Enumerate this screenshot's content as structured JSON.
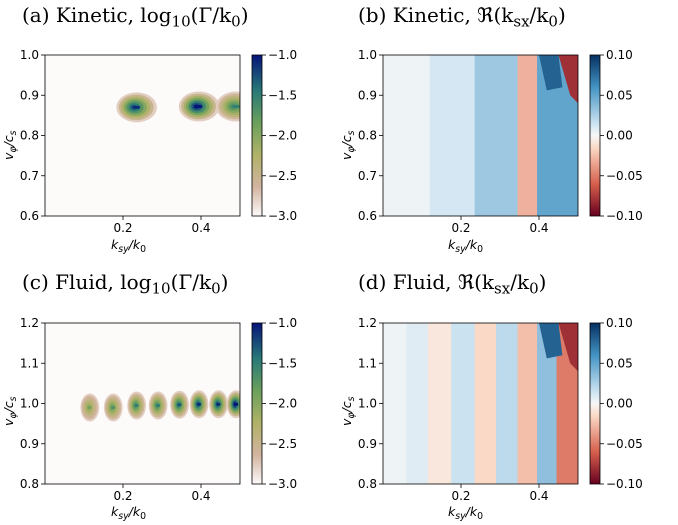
{
  "labels": {
    "xlabel_main": "k",
    "xlabel_sub": "sy",
    "xlabel_div": "/k",
    "xlabel_sub2": "0",
    "ylabel_main": "v",
    "ylabel_sub": "φ",
    "ylabel_div": "/c",
    "ylabel_sub2": "s"
  },
  "titles": {
    "a_prefix": "(a) Kinetic, log",
    "a_base": "10",
    "a_arg": "(Γ/k",
    "a_argsub": "0",
    "a_close": ")",
    "b_prefix": "(b) Kinetic, ℜ(k",
    "b_sub": "sx",
    "b_div": "/k",
    "b_sub2": "0",
    "b_close": ")",
    "c_prefix": "(c) Fluid, log",
    "c_base": "10",
    "c_arg": "(Γ/k",
    "c_argsub": "0",
    "c_close": ")",
    "d_prefix": "(d) Fluid, ℜ(k",
    "d_sub": "sx",
    "d_div": "/k",
    "d_sub2": "0",
    "d_close": ")"
  },
  "chart_data": [
    {
      "type": "heatmap",
      "panel": "a",
      "xlim": [
        0,
        0.5
      ],
      "ylim": [
        0.6,
        1.0
      ],
      "xticks": [
        "0.2",
        "0.4"
      ],
      "xtick_values": [
        0.2,
        0.4
      ],
      "yticks": [
        "0.6",
        "0.7",
        "0.8",
        "0.9",
        "1.0"
      ],
      "ytick_values": [
        0.6,
        0.7,
        0.8,
        0.9,
        1.0
      ],
      "colorbar": {
        "range": [
          -3.0,
          -1.0
        ],
        "ticks": [
          "−3.0",
          "−2.5",
          "−2.0",
          "−1.5",
          "−1.0"
        ],
        "tick_values": [
          -3.0,
          -2.5,
          -2.0,
          -1.5,
          -1.0
        ],
        "cmap": "gist_earth_r"
      },
      "features": [
        {
          "x": 0.235,
          "y": 0.87,
          "peak": -1.2
        },
        {
          "x": 0.395,
          "y": 0.872,
          "peak": -1.0
        },
        {
          "x": 0.49,
          "y": 0.872,
          "peak": -1.6
        }
      ]
    },
    {
      "type": "heatmap",
      "panel": "b",
      "xlim": [
        0,
        0.5
      ],
      "ylim": [
        0.6,
        1.0
      ],
      "xticks": [
        "0.2",
        "0.4"
      ],
      "xtick_values": [
        0.2,
        0.4
      ],
      "yticks": [
        "0.6",
        "0.7",
        "0.8",
        "0.9",
        "1.0"
      ],
      "ytick_values": [
        0.6,
        0.7,
        0.8,
        0.9,
        1.0
      ],
      "colorbar": {
        "range": [
          -0.1,
          0.1
        ],
        "ticks": [
          "−0.10",
          "−0.05",
          "0.00",
          "0.05",
          "0.10"
        ],
        "tick_values": [
          -0.1,
          -0.05,
          0.0,
          0.05,
          0.1
        ],
        "cmap": "RdBu"
      },
      "bands": [
        {
          "x_from": 0.0,
          "x_to": 0.12,
          "value": 0.003
        },
        {
          "x_from": 0.12,
          "x_to": 0.235,
          "value": 0.012
        },
        {
          "x_from": 0.235,
          "x_to": 0.345,
          "value": 0.03
        },
        {
          "x_from": 0.345,
          "x_to": 0.395,
          "value": -0.03
        },
        {
          "x_from": 0.395,
          "x_to": 0.5,
          "value": 0.05
        }
      ]
    },
    {
      "type": "heatmap",
      "panel": "c",
      "xlim": [
        0,
        0.5
      ],
      "ylim": [
        0.8,
        1.2
      ],
      "xticks": [
        "0.2",
        "0.4"
      ],
      "xtick_values": [
        0.2,
        0.4
      ],
      "yticks": [
        "0.8",
        "0.9",
        "1.0",
        "1.1",
        "1.2"
      ],
      "ytick_values": [
        0.8,
        0.9,
        1.0,
        1.1,
        1.2
      ],
      "colorbar": {
        "range": [
          -3.0,
          -1.0
        ],
        "ticks": [
          "−3.0",
          "−2.5",
          "−2.0",
          "−1.5",
          "−1.0"
        ],
        "tick_values": [
          -3.0,
          -2.5,
          -2.0,
          -1.5,
          -1.0
        ],
        "cmap": "gist_earth_r"
      },
      "features": [
        {
          "x": 0.115,
          "y": 0.99,
          "peak": -2.0
        },
        {
          "x": 0.175,
          "y": 0.99,
          "peak": -1.8
        },
        {
          "x": 0.235,
          "y": 0.995,
          "peak": -1.6
        },
        {
          "x": 0.29,
          "y": 0.995,
          "peak": -1.6
        },
        {
          "x": 0.345,
          "y": 0.997,
          "peak": -1.4
        },
        {
          "x": 0.395,
          "y": 0.998,
          "peak": -1.2
        },
        {
          "x": 0.445,
          "y": 0.998,
          "peak": -1.2
        },
        {
          "x": 0.49,
          "y": 0.998,
          "peak": -1.0
        }
      ]
    },
    {
      "type": "heatmap",
      "panel": "d",
      "xlim": [
        0,
        0.5
      ],
      "ylim": [
        0.8,
        1.2
      ],
      "xticks": [
        "0.2",
        "0.4"
      ],
      "xtick_values": [
        0.2,
        0.4
      ],
      "yticks": [
        "0.8",
        "0.9",
        "1.0",
        "1.1",
        "1.2"
      ],
      "ytick_values": [
        0.8,
        0.9,
        1.0,
        1.1,
        1.2
      ],
      "colorbar": {
        "range": [
          -0.1,
          0.1
        ],
        "ticks": [
          "−0.10",
          "−0.05",
          "0.00",
          "0.05",
          "0.10"
        ],
        "tick_values": [
          -0.1,
          -0.05,
          0.0,
          0.05,
          0.1
        ],
        "cmap": "RdBu"
      },
      "bands": [
        {
          "x_from": 0.0,
          "x_to": 0.06,
          "value": 0.003
        },
        {
          "x_from": 0.06,
          "x_to": 0.115,
          "value": 0.008
        },
        {
          "x_from": 0.115,
          "x_to": 0.175,
          "value": -0.008
        },
        {
          "x_from": 0.175,
          "x_to": 0.235,
          "value": 0.015
        },
        {
          "x_from": 0.235,
          "x_to": 0.29,
          "value": -0.015
        },
        {
          "x_from": 0.29,
          "x_to": 0.345,
          "value": 0.02
        },
        {
          "x_from": 0.345,
          "x_to": 0.395,
          "value": -0.025
        },
        {
          "x_from": 0.395,
          "x_to": 0.445,
          "value": 0.035
        },
        {
          "x_from": 0.445,
          "x_to": 0.5,
          "value": -0.05
        }
      ]
    }
  ]
}
